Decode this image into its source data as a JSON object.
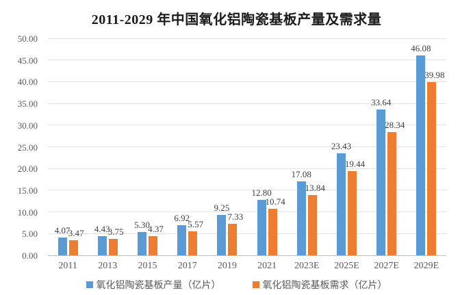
{
  "title": "2011-2029 年中国氧化铝陶瓷基板产量及需求量",
  "chart_data": {
    "type": "bar",
    "title": "2011-2029 年中国氧化铝陶瓷基板产量及需求量",
    "categories": [
      "2011",
      "2013",
      "2015",
      "2017",
      "2019",
      "2021",
      "2023E",
      "2025E",
      "2027E",
      "2029E"
    ],
    "series": [
      {
        "name": "氧化铝陶瓷基板产量（亿片）",
        "color": "#5B9BD5",
        "values": [
          4.07,
          4.43,
          5.3,
          6.92,
          9.25,
          12.8,
          17.08,
          23.43,
          33.64,
          46.08
        ]
      },
      {
        "name": "氧化铝陶瓷基板需求（亿片）",
        "color": "#ED7D31",
        "values": [
          3.47,
          3.75,
          4.37,
          5.57,
          7.33,
          10.74,
          13.84,
          19.44,
          28.34,
          39.98
        ]
      }
    ],
    "xlabel": "",
    "ylabel": "",
    "ylim": [
      0,
      50
    ],
    "ytick_step": 5,
    "ytick_decimals": 2,
    "value_label_decimals": 2,
    "grid": true,
    "legend_position": "bottom"
  },
  "colors": {
    "grid": "#e2e2e2",
    "axis_line": "#bfbfbf",
    "axis_text": "#595959",
    "value_text": "#404040",
    "title_text": "#1a1a1a",
    "background": "#ffffff"
  }
}
